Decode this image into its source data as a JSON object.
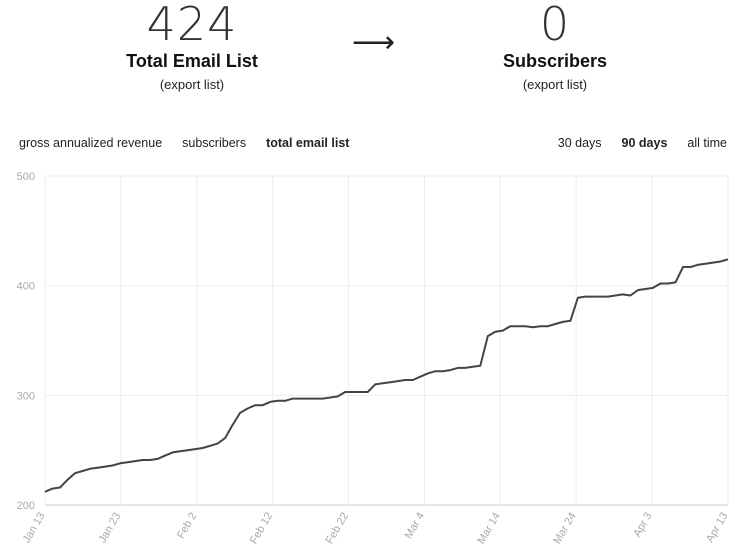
{
  "stats": {
    "left": {
      "number": "424",
      "title": "Total Email List",
      "export_label": "(export list)"
    },
    "arrow": "⟶",
    "right": {
      "number": "0",
      "title": "Subscribers",
      "export_label": "(export list)"
    }
  },
  "metric_tabs": [
    {
      "label": "gross annualized revenue",
      "active": false
    },
    {
      "label": "subscribers",
      "active": false
    },
    {
      "label": "total email list",
      "active": true
    }
  ],
  "range_tabs": [
    {
      "label": "30 days",
      "active": false
    },
    {
      "label": "90 days",
      "active": true
    },
    {
      "label": "all time",
      "active": false
    }
  ],
  "chart_data": {
    "type": "line",
    "title": "",
    "xlabel": "",
    "ylabel": "",
    "ylim": [
      200,
      500
    ],
    "yticks": [
      "200",
      "300",
      "400",
      "500"
    ],
    "xticks": [
      {
        "label": "Jan 13",
        "day": 0
      },
      {
        "label": "Jan 23",
        "day": 10
      },
      {
        "label": "Feb 2",
        "day": 20
      },
      {
        "label": "Feb 12",
        "day": 30
      },
      {
        "label": "Feb 22",
        "day": 40
      },
      {
        "label": "Mar 4",
        "day": 50
      },
      {
        "label": "Mar 14",
        "day": 60
      },
      {
        "label": "Mar 24",
        "day": 70
      },
      {
        "label": "Apr 3",
        "day": 80
      },
      {
        "label": "Apr 13",
        "day": 90
      }
    ],
    "grid": true,
    "line_color": "#444444",
    "series": [
      {
        "values": [
          212,
          215,
          216,
          223,
          229,
          231,
          233,
          234,
          235,
          236,
          238,
          239,
          240,
          241,
          241,
          242,
          245,
          248,
          249,
          250,
          251,
          252,
          254,
          256,
          261,
          273,
          284,
          288,
          291,
          291,
          294,
          295,
          295,
          297,
          297,
          297,
          297,
          297,
          298,
          299,
          303,
          303,
          303,
          303,
          310,
          311,
          312,
          313,
          314,
          314,
          317,
          320,
          322,
          322,
          323,
          325,
          325,
          326,
          327,
          354,
          358,
          359,
          363,
          363,
          363,
          362,
          363,
          363,
          365,
          367,
          368,
          389,
          390,
          390,
          390,
          390,
          391,
          392,
          391,
          396,
          397,
          398,
          402,
          402,
          403,
          417,
          417,
          419,
          420,
          421,
          422,
          424
        ]
      }
    ]
  }
}
